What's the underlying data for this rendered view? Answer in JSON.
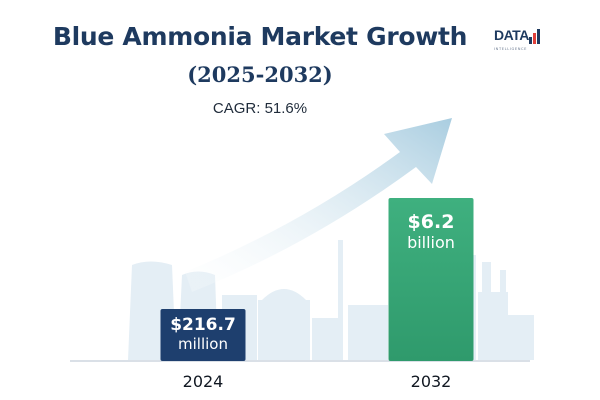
{
  "header": {
    "title": "Blue Ammonia Market Growth",
    "subtitle": "(2025-2032)",
    "cagr": "CAGR: 51.6%"
  },
  "logo": {
    "text": "DATA",
    "tagline": "INTELLIGENCE"
  },
  "colors": {
    "title": "#1e3a5f",
    "bar_2024": "#1e3f6e",
    "bar_2032": "#3aa97a",
    "arrow": "#b9d7e6",
    "skyline": "#e3eef5"
  },
  "chart_data": {
    "type": "bar",
    "title": "Blue Ammonia Market Growth",
    "subtitle": "(2025-2032)",
    "annotation": "CAGR: 51.6%",
    "categories": [
      "2024",
      "2032"
    ],
    "values": [
      216.7,
      6200
    ],
    "unit": "USD million",
    "value_labels": [
      {
        "value": "$216.7",
        "unit": "million"
      },
      {
        "value": "$6.2",
        "unit": "billion"
      }
    ],
    "xlabel": "",
    "ylabel": "",
    "grid": false,
    "legend": "none"
  }
}
